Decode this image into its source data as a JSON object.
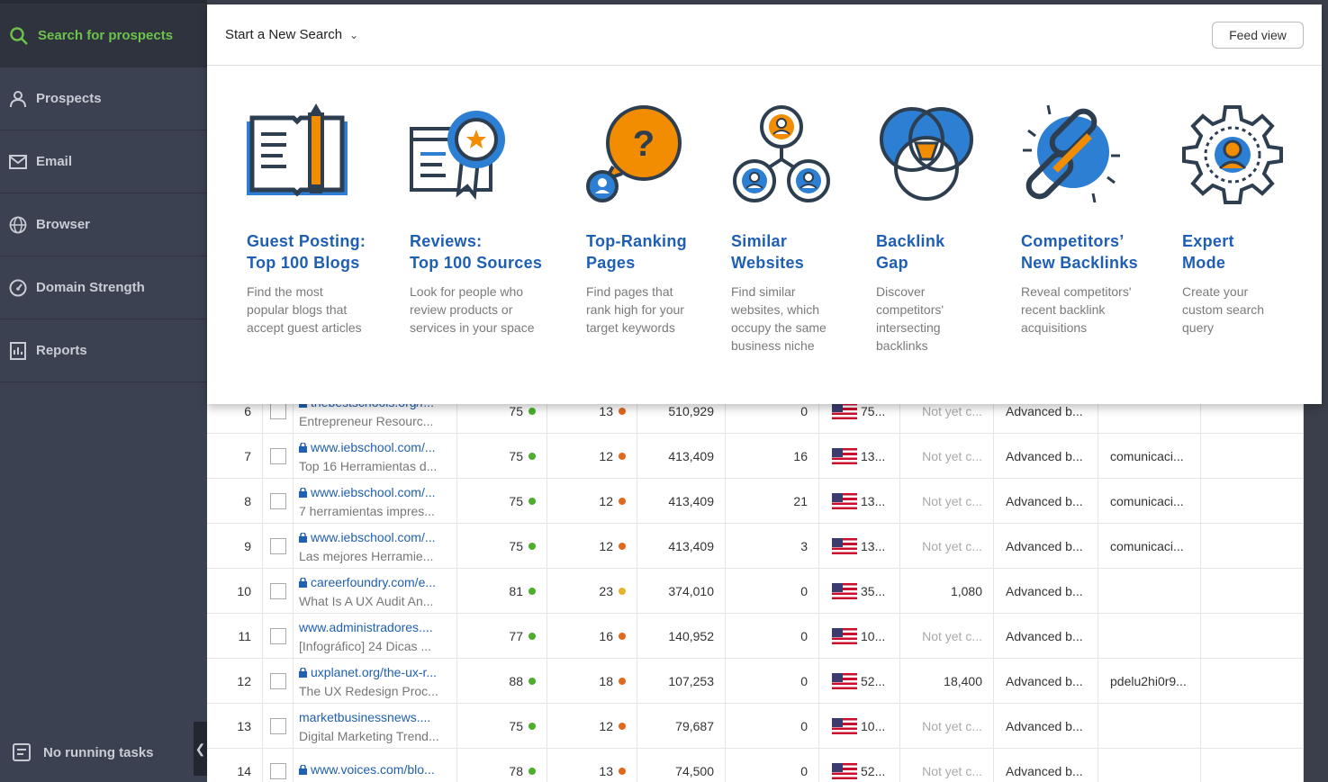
{
  "sidebar": {
    "search_label": "Search for prospects",
    "items": [
      {
        "label": "Prospects",
        "icon": "user-icon"
      },
      {
        "label": "Email",
        "icon": "envelope-icon"
      },
      {
        "label": "Browser",
        "icon": "globe-icon"
      },
      {
        "label": "Domain Strength",
        "icon": "gauge-icon"
      },
      {
        "label": "Reports",
        "icon": "report-icon"
      }
    ],
    "tasks_label": "No running tasks",
    "collapse_glyph": "❮"
  },
  "popup": {
    "title": "Start a New Search",
    "feed_view": "Feed view",
    "cards": [
      {
        "title1": "Guest Posting:",
        "title2": "Top 100 Blogs",
        "desc": "Find the most popular blogs that accept guest articles"
      },
      {
        "title1": "Reviews:",
        "title2": "Top 100 Sources",
        "desc": "Look for people who review products or services in your space"
      },
      {
        "title1": "Top-Ranking",
        "title2": "Pages",
        "desc": "Find pages that rank high for your target keywords"
      },
      {
        "title1": "Similar",
        "title2": "Websites",
        "desc": "Find similar websites, which occupy the same business niche"
      },
      {
        "title1": "Backlink",
        "title2": "Gap",
        "desc": "Discover competitors' intersecting backlinks"
      },
      {
        "title1": "Competitors’",
        "title2": "New Backlinks",
        "desc": "Reveal competitors' recent backlink acquisitions"
      },
      {
        "title1": "Expert",
        "title2": "Mode",
        "desc": "Create your custom search query"
      }
    ]
  },
  "colors": {
    "orange": "#f28c00",
    "blue": "#2d7fd3",
    "dark": "#2d3e50",
    "green": "#4caf2b",
    "dot_orange": "#e06a1b",
    "dot_yellow": "#e8b22a"
  },
  "rows": [
    {
      "num": "6",
      "url": "thebestschools.org/r...",
      "title": "Entrepreneur Resourc...",
      "dr": "75",
      "ur": "13",
      "ur_dot": "orange",
      "traffic": "510,929",
      "backlinks": "0",
      "flag_val": "75...",
      "visits": "Not yet c...",
      "type": "Advanced b...",
      "keyword": ""
    },
    {
      "num": "7",
      "url": "www.iebschool.com/...",
      "title": "Top 16 Herramientas d...",
      "dr": "75",
      "ur": "12",
      "ur_dot": "orange",
      "traffic": "413,409",
      "backlinks": "16",
      "flag_val": "13...",
      "visits": "Not yet c...",
      "type": "Advanced b...",
      "keyword": "comunicaci..."
    },
    {
      "num": "8",
      "url": "www.iebschool.com/...",
      "title": "7 herramientas impres...",
      "dr": "75",
      "ur": "12",
      "ur_dot": "orange",
      "traffic": "413,409",
      "backlinks": "21",
      "flag_val": "13...",
      "visits": "Not yet c...",
      "type": "Advanced b...",
      "keyword": "comunicaci..."
    },
    {
      "num": "9",
      "url": "www.iebschool.com/...",
      "title": "Las mejores Herramie...",
      "dr": "75",
      "ur": "12",
      "ur_dot": "orange",
      "traffic": "413,409",
      "backlinks": "3",
      "flag_val": "13...",
      "visits": "Not yet c...",
      "type": "Advanced b...",
      "keyword": "comunicaci..."
    },
    {
      "num": "10",
      "url": "careerfoundry.com/e...",
      "title": "What Is A UX Audit An...",
      "dr": "81",
      "ur": "23",
      "ur_dot": "yellow",
      "traffic": "374,010",
      "backlinks": "0",
      "flag_val": "35...",
      "visits": "1,080",
      "type": "Advanced b...",
      "keyword": ""
    },
    {
      "num": "11",
      "url": "www.administradores....",
      "title": "[Infográfico] 24 Dicas ...",
      "dr": "77",
      "ur": "16",
      "ur_dot": "orange",
      "traffic": "140,952",
      "backlinks": "0",
      "flag_val": "10...",
      "visits": "Not yet c...",
      "type": "Advanced b...",
      "keyword": ""
    },
    {
      "num": "12",
      "url": "uxplanet.org/the-ux-r...",
      "title": "The UX Redesign Proc...",
      "dr": "88",
      "ur": "18",
      "ur_dot": "orange",
      "traffic": "107,253",
      "backlinks": "0",
      "flag_val": "52...",
      "visits": "18,400",
      "type": "Advanced b...",
      "keyword": "pdelu2hi0r9..."
    },
    {
      "num": "13",
      "url": "marketbusinessnews....",
      "title": "Digital Marketing Trend...",
      "dr": "75",
      "ur": "12",
      "ur_dot": "orange",
      "traffic": "79,687",
      "backlinks": "0",
      "flag_val": "10...",
      "visits": "Not yet c...",
      "type": "Advanced b...",
      "keyword": ""
    },
    {
      "num": "14",
      "url": "www.voices.com/blo...",
      "title": "",
      "dr": "78",
      "ur": "13",
      "ur_dot": "orange",
      "traffic": "74,500",
      "backlinks": "0",
      "flag_val": "52...",
      "visits": "Not yet c...",
      "type": "Advanced b...",
      "keyword": ""
    }
  ]
}
